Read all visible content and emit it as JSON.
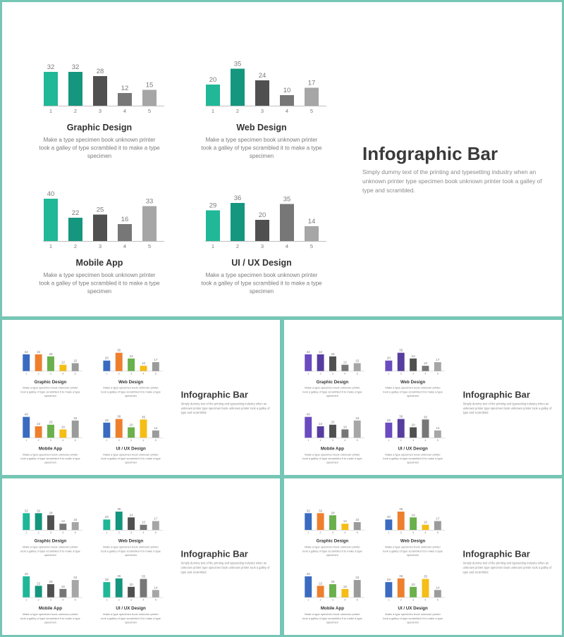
{
  "heading": "Infographic Bar",
  "paragraph_lines": [
    "Simply dummy text of the printing and typesetting industry when  an",
    "unknown  printer type specimen book unknown  printer took a galley of",
    "type and scrambled."
  ],
  "description_lines": [
    "Make  a type  specimen book unknown printer",
    "took a galley of type  scrambled it to make a type",
    "specimen"
  ],
  "palettes": {
    "green": [
      "#20b896",
      "#15967e",
      "#505050",
      "#777777",
      "#a6a6a6"
    ],
    "multi": [
      "#3a6bc0",
      "#ee7f2d",
      "#6ab04c",
      "#f5bd16",
      "#9b9b9b"
    ],
    "purple": [
      "#6a4bc0",
      "#573d9e",
      "#505050",
      "#777777",
      "#a6a6a6"
    ],
    "teal": [
      "#1fb797",
      "#14957d",
      "#505050",
      "#777777",
      "#a6a6a6"
    ],
    "multi2": [
      "#3a6bc0",
      "#ee7f2d",
      "#6ab04c",
      "#f5bd16",
      "#9b9b9b"
    ]
  },
  "chart_data": [
    {
      "type": "bar",
      "title": "Graphic Design",
      "categories": [
        "1",
        "2",
        "3",
        "4",
        "5"
      ],
      "values": [
        32,
        32,
        28,
        12,
        15
      ]
    },
    {
      "type": "bar",
      "title": "Web Design",
      "categories": [
        "1",
        "2",
        "3",
        "4",
        "5"
      ],
      "values": [
        20,
        35,
        24,
        10,
        17
      ]
    },
    {
      "type": "bar",
      "title": "Mobile App",
      "categories": [
        "1",
        "2",
        "3",
        "4",
        "5"
      ],
      "values": [
        40,
        22,
        25,
        16,
        33
      ]
    },
    {
      "type": "bar",
      "title": "UI / UX Design",
      "categories": [
        "1",
        "2",
        "3",
        "4",
        "5"
      ],
      "values": [
        29,
        36,
        20,
        35,
        14
      ]
    }
  ]
}
